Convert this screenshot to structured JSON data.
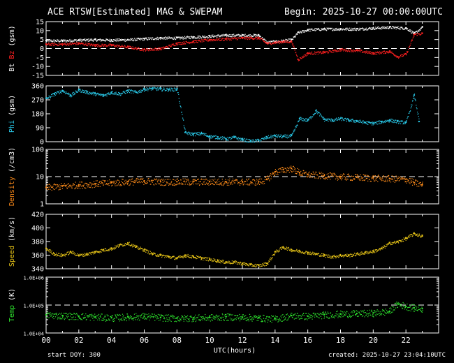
{
  "header": {
    "title": "ACE RTSW[Estimated] MAG & SWEPAM",
    "begin": "Begin: 2025-10-27 00:00:00UTC"
  },
  "footer": {
    "start_doy": "start DOY: 300",
    "created": "created: 2025-10-27 23:04:10UTC"
  },
  "colors": {
    "background": "#000000",
    "axis": "#ffffff",
    "bt": "#ffffff",
    "bz": "#ff2020",
    "phi": "#29c7e6",
    "density": "#ff8c1a",
    "speed": "#e6c317",
    "temp": "#2ee62e"
  },
  "chart_data": [
    {
      "type": "line",
      "panel": "mag",
      "ylabel_parts": [
        "Bt",
        "Bz",
        "(gsm)"
      ],
      "yticks": [
        "15",
        "10",
        "5",
        "0",
        "-5",
        "-10",
        "-15"
      ],
      "ylim": [
        -15,
        15
      ],
      "reference_line": 0,
      "x_unit": "hours",
      "series": [
        {
          "name": "Bt",
          "x": [
            0,
            1,
            2,
            3,
            4,
            5,
            6,
            7,
            8,
            9,
            10,
            11,
            12,
            13,
            13.5,
            14,
            14.5,
            15,
            15.4,
            16,
            17,
            18,
            19,
            20,
            21,
            22,
            22.5,
            23
          ],
          "y": [
            4.5,
            4.5,
            4.8,
            5,
            4.8,
            5,
            5.5,
            6,
            6,
            6.5,
            7,
            7.5,
            7.5,
            7.5,
            3.5,
            4,
            4.5,
            5,
            9,
            10.5,
            11,
            11,
            11,
            11.5,
            12,
            11.5,
            8.5,
            12
          ]
        },
        {
          "name": "Bz",
          "x": [
            0,
            1,
            2,
            3,
            4,
            5,
            6,
            7,
            8,
            9,
            10,
            11,
            12,
            13,
            13.5,
            14,
            14.5,
            15,
            15.4,
            16,
            17,
            18,
            19,
            20,
            21,
            21.5,
            22,
            22.5,
            23
          ],
          "y": [
            2.5,
            2.5,
            3,
            2,
            2,
            1,
            -0.5,
            0,
            3,
            4,
            5,
            5.5,
            6,
            6,
            3,
            3.5,
            4,
            4,
            -6,
            -2.5,
            -2,
            -0.5,
            -1,
            -2.5,
            -1.5,
            -4.5,
            -3,
            8,
            8.5
          ]
        }
      ]
    },
    {
      "type": "scatter",
      "panel": "phi",
      "ylabel": "Phi (gsm)",
      "yticks": [
        "360",
        "270",
        "180",
        "90",
        "0"
      ],
      "ylim": [
        0,
        360
      ],
      "x_unit": "hours",
      "series": [
        {
          "name": "Phi",
          "x": [
            0,
            0.5,
            1,
            1.5,
            2,
            2.5,
            3,
            3.5,
            4,
            4.5,
            5,
            5.5,
            6,
            6.5,
            7,
            7.5,
            8,
            8.5,
            9,
            9.5,
            10,
            10.5,
            11,
            11.5,
            12,
            12.5,
            13,
            13.5,
            14,
            14.5,
            15,
            15.5,
            16,
            16.5,
            17,
            17.5,
            18,
            18.5,
            19,
            19.5,
            20,
            20.5,
            21,
            21.5,
            22,
            22.5,
            22.8
          ],
          "y": [
            280,
            310,
            330,
            300,
            335,
            320,
            310,
            300,
            320,
            310,
            330,
            320,
            340,
            345,
            340,
            338,
            340,
            60,
            50,
            55,
            35,
            30,
            20,
            30,
            15,
            5,
            10,
            30,
            40,
            35,
            40,
            150,
            140,
            200,
            145,
            140,
            150,
            140,
            135,
            125,
            120,
            130,
            140,
            130,
            125,
            300,
            130
          ]
        }
      ]
    },
    {
      "type": "scatter",
      "panel": "density",
      "ylabel": "Density (/cm3)",
      "yticks": [
        "100",
        "10",
        "1"
      ],
      "yscale": "log",
      "ylim": [
        1,
        100
      ],
      "reference_line": 10,
      "x_unit": "hours",
      "series": [
        {
          "name": "Density",
          "x": [
            0,
            1,
            2,
            3,
            4,
            5,
            6,
            7,
            8,
            9,
            10,
            11,
            12,
            13,
            13.5,
            14,
            14.5,
            15,
            15.5,
            16,
            17,
            18,
            19,
            20,
            21,
            22,
            22.5,
            23
          ],
          "y": [
            4,
            4.5,
            5,
            5.5,
            6,
            6.5,
            7,
            6.5,
            6.5,
            6.5,
            6.5,
            6.5,
            6.5,
            6.5,
            8,
            15,
            18,
            20,
            14,
            12,
            11,
            10,
            9.5,
            9,
            8.5,
            8,
            6,
            5
          ]
        }
      ]
    },
    {
      "type": "scatter",
      "panel": "speed",
      "ylabel": "Speed (km/s)",
      "yticks": [
        "420",
        "400",
        "380",
        "360",
        "340"
      ],
      "ylim": [
        340,
        420
      ],
      "x_unit": "hours",
      "series": [
        {
          "name": "Speed",
          "x": [
            0,
            0.5,
            1,
            1.5,
            2,
            2.5,
            3,
            3.5,
            4,
            4.5,
            5,
            5.5,
            6,
            6.5,
            7,
            7.5,
            8,
            8.5,
            9,
            9.5,
            10,
            10.5,
            11,
            11.5,
            12,
            12.5,
            13,
            13.5,
            14,
            14.5,
            15,
            15.5,
            16,
            16.5,
            17,
            17.5,
            18,
            18.5,
            19,
            19.5,
            20,
            20.5,
            21,
            21.5,
            22,
            22.5,
            23
          ],
          "y": [
            370,
            362,
            360,
            365,
            360,
            362,
            365,
            368,
            370,
            375,
            378,
            372,
            368,
            362,
            360,
            358,
            356,
            360,
            358,
            356,
            354,
            352,
            350,
            350,
            348,
            346,
            345,
            348,
            365,
            372,
            368,
            366,
            364,
            362,
            360,
            358,
            360,
            360,
            362,
            364,
            366,
            370,
            378,
            380,
            385,
            392,
            388
          ]
        }
      ]
    },
    {
      "type": "scatter",
      "panel": "temp",
      "ylabel": "Temp (K)",
      "yticks": [
        "1.0E+06",
        "1.0E+05",
        "1.0E+04"
      ],
      "yscale": "log",
      "ylim": [
        10000,
        1000000
      ],
      "reference_line": 100000,
      "x_unit": "hours",
      "series": [
        {
          "name": "Temp",
          "x": [
            0,
            1,
            2,
            3,
            4,
            5,
            6,
            7,
            8,
            9,
            10,
            11,
            12,
            13,
            14,
            15,
            16,
            17,
            18,
            19,
            20,
            21,
            21.5,
            22,
            22.5,
            23
          ],
          "y": [
            45000,
            42000,
            40000,
            38000,
            35000,
            38000,
            40000,
            36000,
            34000,
            35000,
            36000,
            38000,
            37000,
            35000,
            32000,
            42000,
            40000,
            45000,
            48000,
            50000,
            52000,
            60000,
            110000,
            90000,
            80000,
            75000
          ]
        }
      ]
    }
  ],
  "xaxis": {
    "label": "UTC(hours)",
    "tick_labels": [
      "00",
      "02",
      "04",
      "06",
      "08",
      "10",
      "12",
      "14",
      "16",
      "18",
      "20",
      "22"
    ],
    "tick_hours": [
      0,
      2,
      4,
      6,
      8,
      10,
      12,
      14,
      16,
      18,
      20,
      22
    ],
    "range": [
      0,
      24
    ]
  }
}
